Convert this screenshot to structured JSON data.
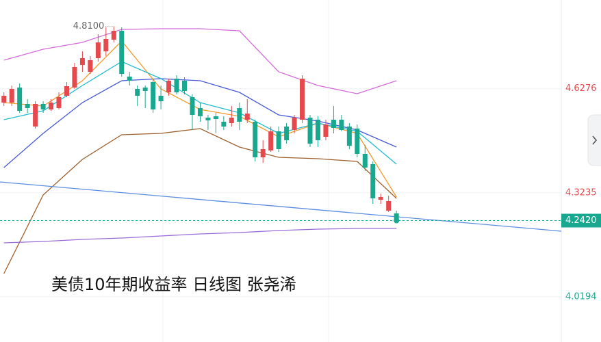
{
  "chart_data": {
    "type": "candlestick",
    "caption": "美债10年期收益率 日线图  张尧浠",
    "ylim": [
      3.887,
      4.887
    ],
    "xlim": [
      -0.5,
      71
    ],
    "yticks": [
      4.6276,
      4.3235,
      4.0194
    ],
    "grid": true,
    "up_color": "#e5484d",
    "down_color": "#18a88f",
    "last_price": {
      "value": 4.242,
      "label": "4.2420"
    },
    "high_annotation": {
      "x": 14,
      "value": 4.81,
      "label": "4.8100"
    },
    "candles": {
      "open": [
        4.587,
        4.587,
        4.631,
        4.583,
        4.517,
        4.583,
        4.567,
        4.571,
        4.607,
        4.631,
        4.697,
        4.677,
        4.717,
        4.737,
        4.771,
        4.797,
        4.663,
        4.627,
        4.631,
        4.647,
        4.607,
        4.617,
        4.657,
        4.651,
        4.603,
        4.571,
        4.543,
        4.547,
        4.531,
        4.527,
        4.571,
        4.537,
        4.531,
        4.427,
        4.447,
        4.503,
        4.517,
        4.507,
        4.537,
        4.543,
        4.537,
        4.487,
        4.537,
        4.537,
        4.517,
        4.511,
        4.437,
        4.407,
        4.303,
        4.271,
        4.263
      ],
      "high": [
        4.617,
        4.637,
        4.643,
        4.597,
        4.591,
        4.591,
        4.597,
        4.617,
        4.647,
        4.703,
        4.737,
        4.723,
        4.787,
        4.807,
        4.81,
        4.807,
        4.677,
        4.637,
        4.637,
        4.657,
        4.637,
        4.657,
        4.667,
        4.661,
        4.611,
        4.587,
        4.551,
        4.557,
        4.547,
        4.577,
        4.587,
        4.597,
        4.537,
        4.477,
        4.517,
        4.517,
        4.527,
        4.551,
        4.667,
        4.551,
        4.547,
        4.537,
        4.577,
        4.551,
        4.527,
        4.523,
        4.463,
        4.415,
        4.321,
        4.315,
        4.271
      ],
      "low": [
        4.577,
        4.577,
        4.557,
        4.557,
        4.511,
        4.557,
        4.563,
        4.567,
        4.603,
        4.627,
        4.677,
        4.671,
        4.707,
        4.723,
        4.763,
        4.663,
        4.637,
        4.577,
        4.571,
        4.557,
        4.567,
        4.607,
        4.611,
        4.611,
        4.507,
        4.531,
        4.507,
        4.497,
        4.507,
        4.517,
        4.507,
        4.527,
        4.415,
        4.411,
        4.443,
        4.443,
        4.467,
        4.497,
        4.527,
        4.457,
        4.457,
        4.477,
        4.497,
        4.503,
        4.451,
        4.427,
        4.387,
        4.291,
        4.291,
        4.267,
        4.235
      ],
      "close": [
        4.607,
        4.627,
        4.563,
        4.571,
        4.583,
        4.567,
        4.587,
        4.603,
        4.635,
        4.691,
        4.717,
        4.711,
        4.763,
        4.773,
        4.797,
        4.671,
        4.651,
        4.607,
        4.621,
        4.567,
        4.591,
        4.651,
        4.617,
        4.621,
        4.551,
        4.547,
        4.535,
        4.539,
        4.517,
        4.543,
        4.531,
        4.555,
        4.427,
        4.451,
        4.503,
        4.451,
        4.477,
        4.543,
        4.657,
        4.467,
        4.477,
        4.523,
        4.513,
        4.507,
        4.461,
        4.437,
        4.397,
        4.307,
        4.311,
        4.299,
        4.242
      ]
    },
    "lines": [
      {
        "color": "#d46ad8",
        "x": [
          0,
          5,
          10,
          15,
          20,
          25,
          30,
          35,
          40,
          45,
          50
        ],
        "values": [
          4.711,
          4.743,
          4.763,
          4.801,
          4.803,
          4.803,
          4.797,
          4.677,
          4.637,
          4.613,
          4.651
        ]
      },
      {
        "color": "#4658d8",
        "x": [
          0,
          5,
          10,
          15,
          20,
          25,
          30,
          35,
          40,
          45,
          50
        ],
        "values": [
          4.397,
          4.497,
          4.587,
          4.651,
          4.657,
          4.651,
          4.617,
          4.551,
          4.533,
          4.507,
          4.457
        ]
      },
      {
        "color": "#9c5f2c",
        "x": [
          0,
          5,
          10,
          15,
          20,
          25,
          30,
          35,
          40,
          45,
          50
        ],
        "values": [
          4.087,
          4.317,
          4.421,
          4.493,
          4.497,
          4.511,
          4.457,
          4.427,
          4.423,
          4.415,
          4.307
        ]
      },
      {
        "color": "#f39a2d",
        "x": [
          0,
          5,
          10,
          15,
          20,
          25,
          30,
          35,
          40,
          45,
          50
        ],
        "values": [
          4.587,
          4.577,
          4.651,
          4.767,
          4.627,
          4.567,
          4.547,
          4.487,
          4.527,
          4.497,
          4.311
        ]
      },
      {
        "color": "#23bcd0",
        "x": [
          0,
          5,
          10,
          15,
          20,
          25,
          30,
          35,
          40,
          45,
          50
        ],
        "values": [
          4.537,
          4.563,
          4.637,
          4.707,
          4.657,
          4.587,
          4.557,
          4.497,
          4.527,
          4.503,
          4.407
        ]
      },
      {
        "color": "#9a6ad8",
        "x": [
          0,
          5,
          10,
          15,
          20,
          25,
          30,
          35,
          40,
          45,
          50
        ],
        "values": [
          4.177,
          4.181,
          4.187,
          4.191,
          4.197,
          4.203,
          4.207,
          4.213,
          4.217,
          4.219,
          4.219
        ]
      },
      {
        "color": "#5b8de0",
        "x": [
          -0.5,
          71
        ],
        "values": [
          4.355,
          4.211
        ]
      }
    ]
  }
}
